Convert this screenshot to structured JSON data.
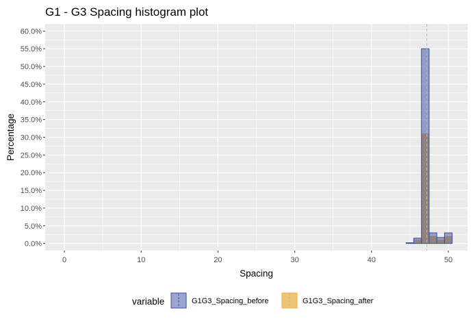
{
  "chart_data": {
    "type": "bar",
    "title": "G1 - G3 Spacing histogram plot",
    "xlabel": "Spacing",
    "ylabel": "Percentage",
    "xlim": [
      -2.5,
      52.5
    ],
    "ylim": [
      -2,
      62
    ],
    "x_ticks": [
      0,
      10,
      20,
      30,
      40,
      50
    ],
    "y_ticks": [
      0,
      5,
      10,
      15,
      20,
      25,
      30,
      35,
      40,
      45,
      50,
      55,
      60
    ],
    "y_tick_suffix": "%",
    "bin_width": 1,
    "grid": true,
    "legend_position": "bottom",
    "legend_title": "variable",
    "series": [
      {
        "name": "G1G3_Spacing_before",
        "color": "#3b4ea0",
        "bins": [
          {
            "x": 45,
            "y": 0.2
          },
          {
            "x": 46,
            "y": 1.5
          },
          {
            "x": 47,
            "y": 55.0
          },
          {
            "x": 48,
            "y": 3.0
          },
          {
            "x": 49,
            "y": 1.7
          },
          {
            "x": 50,
            "y": 3.0
          }
        ]
      },
      {
        "name": "G1G3_Spacing_after",
        "color": "#e8b14a",
        "bins": [
          {
            "x": 45,
            "y": 0
          },
          {
            "x": 46,
            "y": 1.0
          },
          {
            "x": 47,
            "y": 31.0
          },
          {
            "x": 48,
            "y": 2.0
          },
          {
            "x": 49,
            "y": 1.0
          },
          {
            "x": 50,
            "y": 2.0
          }
        ]
      }
    ],
    "reference_lines": [
      {
        "series": "G1G3_Spacing_after",
        "x": 47.2,
        "style": "dashed",
        "color": "#e8b14a"
      }
    ]
  }
}
